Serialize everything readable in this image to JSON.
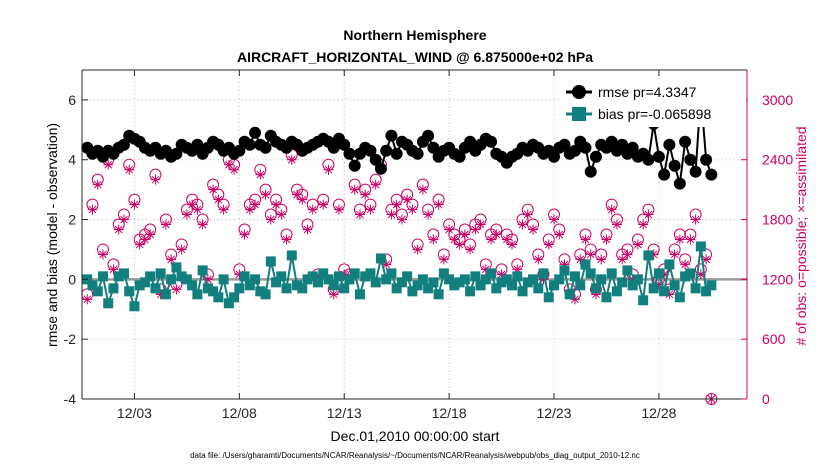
{
  "chart_data": {
    "type": "line",
    "title": "Northern Hemisphere",
    "subtitle": "AIRCRAFT_HORIZONTAL_WIND @ 6.875000e+02 hPa",
    "xlabel": "Dec.01,2010 00:00:00 start",
    "ylabel_left": "rmse and bias (model - observation)",
    "ylabel_right": "# of obs: o=possible; ×=assimilated",
    "footnote": "data file: /Users/gharamti/Documents/NCAR/Reanalysis/~/Documents/NCAR/Reanalysis/webpub/obs_diag_output_2010-12.nc",
    "xlim": [
      0.5,
      32.2
    ],
    "ylim_left": [
      -4,
      7
    ],
    "ylim_right": [
      0,
      3300
    ],
    "x_ticks": [
      {
        "value": 3,
        "label": "12/03"
      },
      {
        "value": 8,
        "label": "12/08"
      },
      {
        "value": 13,
        "label": "12/13"
      },
      {
        "value": 18,
        "label": "12/18"
      },
      {
        "value": 23,
        "label": "12/23"
      },
      {
        "value": 28,
        "label": "12/28"
      }
    ],
    "y_ticks_left": [
      {
        "value": -4,
        "label": "-4"
      },
      {
        "value": -2,
        "label": "-2"
      },
      {
        "value": 0,
        "label": "0"
      },
      {
        "value": 2,
        "label": "2"
      },
      {
        "value": 4,
        "label": "4"
      },
      {
        "value": 6,
        "label": "6"
      }
    ],
    "y_ticks_right": [
      {
        "value": 0,
        "label": "0"
      },
      {
        "value": 600,
        "label": "600"
      },
      {
        "value": 1200,
        "label": "1200"
      },
      {
        "value": 1800,
        "label": "1800"
      },
      {
        "value": 2400,
        "label": "2400"
      },
      {
        "value": 3000,
        "label": "3000"
      }
    ],
    "x_start": 0.75,
    "x_step": 0.25,
    "series": [
      {
        "name": "rmse pr=4.3347",
        "color": "#000000",
        "axis": "left",
        "values": [
          4.4,
          4.2,
          4.3,
          4.1,
          4.3,
          4.2,
          4.4,
          4.5,
          4.8,
          4.7,
          4.6,
          4.4,
          4.3,
          4.4,
          4.2,
          4.3,
          4.1,
          4.2,
          4.5,
          4.4,
          4.3,
          4.5,
          4.2,
          4.4,
          4.6,
          4.5,
          4.3,
          4.4,
          4.2,
          4.3,
          4.6,
          4.5,
          4.9,
          4.5,
          4.4,
          4.8,
          4.6,
          4.5,
          4.4,
          4.6,
          4.5,
          4.3,
          4.4,
          4.5,
          4.6,
          4.7,
          4.6,
          4.4,
          4.7,
          4.5,
          4.2,
          3.8,
          4.2,
          4.4,
          4.3,
          4.0,
          3.7,
          4.3,
          4.8,
          4.2,
          4.6,
          4.5,
          4.3,
          4.2,
          4.6,
          4.8,
          4.4,
          4.1,
          4.3,
          4.4,
          4.2,
          4.1,
          4.4,
          4.6,
          4.3,
          4.5,
          4.7,
          4.6,
          4.2,
          4.1,
          3.9,
          4.1,
          4.2,
          4.4,
          4.3,
          4.5,
          4.4,
          4.2,
          4.3,
          4.1,
          4.4,
          4.5,
          4.2,
          4.3,
          4.6,
          4.4,
          3.6,
          4.1,
          4.5,
          4.4,
          4.6,
          4.3,
          4.5,
          4.2,
          4.4,
          4.1,
          4.2,
          4.0,
          5.2,
          4.1,
          3.5,
          4.5,
          3.8,
          3.2,
          4.6,
          4.0,
          3.6,
          6.2,
          4.0,
          3.5
        ]
      },
      {
        "name": "bias pr=-0.065898",
        "color": "#127f7f",
        "axis": "left",
        "values": [
          0.0,
          -0.2,
          -0.4,
          0.1,
          -0.8,
          -0.3,
          0.1,
          0.2,
          -0.4,
          -0.9,
          -0.2,
          -0.1,
          0.1,
          -0.3,
          0.2,
          -0.5,
          0.0,
          0.4,
          0.1,
          0.0,
          -0.2,
          -0.5,
          0.3,
          -0.3,
          -0.4,
          -0.6,
          0.0,
          -0.8,
          -0.6,
          -0.3,
          0.1,
          -0.2,
          0.0,
          -0.4,
          -0.5,
          0.6,
          -0.1,
          0.1,
          -0.3,
          0.8,
          -0.2,
          -0.3,
          0.0,
          0.1,
          -0.1,
          0.2,
          0.0,
          -0.2,
          0.1,
          -0.3,
          0.0,
          0.2,
          -0.5,
          0.1,
          0.2,
          -0.1,
          0.7,
          0.0,
          0.2,
          -0.3,
          -0.1,
          0.1,
          -0.4,
          -0.2,
          0.0,
          -0.3,
          -0.1,
          -0.5,
          0.2,
          0.0,
          -0.2,
          -0.1,
          0.0,
          -0.4,
          0.1,
          -0.2,
          0.0,
          0.2,
          -0.3,
          -0.1,
          0.0,
          -0.2,
          0.1,
          -0.4,
          -0.1,
          0.0,
          -0.3,
          0.2,
          -0.6,
          -0.2,
          0.0,
          0.3,
          -0.5,
          0.1,
          -0.2,
          0.5,
          0.2,
          -0.3,
          0.0,
          -0.6,
          0.2,
          -0.4,
          -0.1,
          0.3,
          -0.2,
          0.0,
          -0.7,
          0.8,
          -0.3,
          0.2,
          -0.4,
          0.5,
          -0.2,
          -0.6,
          0.1,
          0.2,
          -0.3,
          1.1,
          -0.4,
          -0.2
        ]
      },
      {
        "name": "possible",
        "color": "#cc0066",
        "axis": "right",
        "marker": "o",
        "values": [
          1050,
          1950,
          2200,
          1500,
          2400,
          1350,
          1750,
          1850,
          2350,
          2000,
          1600,
          1650,
          1700,
          2250,
          1100,
          1800,
          1450,
          1150,
          1550,
          1900,
          2000,
          1950,
          1800,
          1250,
          2150,
          2050,
          1950,
          2400,
          2350,
          1300,
          1700,
          1950,
          2000,
          2300,
          2100,
          1850,
          2000,
          1900,
          1650,
          2450,
          2100,
          2050,
          1750,
          1950,
          1250,
          2000,
          2350,
          1100,
          1950,
          1300,
          1250,
          2150,
          1900,
          2100,
          1950,
          2200,
          2350,
          1400,
          1900,
          2000,
          1850,
          2050,
          1950,
          1550,
          2150,
          1900,
          1650,
          2000,
          1450,
          1750,
          1650,
          1600,
          1700,
          1550,
          1750,
          1800,
          1350,
          1650,
          1700,
          1300,
          1650,
          1600,
          1350,
          1800,
          1900,
          1750,
          1450,
          1250,
          1600,
          1850,
          1700,
          1400,
          1100,
          1050,
          1450,
          1650,
          1500,
          1100,
          1450,
          1650,
          1950,
          1800,
          1450,
          1500,
          1250,
          1600,
          1800,
          1900,
          1500,
          1200,
          1300,
          1100,
          1500,
          1650,
          1400,
          1650,
          1850,
          1300,
          1450,
          0
        ]
      },
      {
        "name": "assimilated",
        "color": "#cc0066",
        "axis": "right",
        "marker": "x",
        "values": [
          1000,
          1900,
          2150,
          1450,
          2350,
          1300,
          1700,
          1800,
          2300,
          1950,
          1550,
          1600,
          1650,
          2200,
          1050,
          1750,
          1400,
          1100,
          1500,
          1850,
          1950,
          1900,
          1750,
          1200,
          2100,
          2000,
          1900,
          2350,
          2300,
          1250,
          1650,
          1900,
          1950,
          2250,
          2050,
          1800,
          1950,
          1850,
          1600,
          2400,
          2050,
          2000,
          1700,
          1900,
          1200,
          1950,
          2300,
          1050,
          1900,
          1250,
          1200,
          2100,
          1850,
          2050,
          1900,
          2150,
          2300,
          1350,
          1850,
          1950,
          1800,
          2000,
          1900,
          1500,
          2100,
          1850,
          1600,
          1950,
          1400,
          1700,
          1600,
          1550,
          1650,
          1500,
          1700,
          1750,
          1300,
          1600,
          1650,
          1250,
          1600,
          1550,
          1300,
          1750,
          1850,
          1700,
          1400,
          1200,
          1550,
          1800,
          1650,
          1350,
          1050,
          1000,
          1400,
          1600,
          1450,
          1050,
          1400,
          1600,
          1900,
          1750,
          1400,
          1450,
          1200,
          1550,
          1750,
          1850,
          1450,
          1150,
          1250,
          1050,
          1450,
          1600,
          1350,
          1600,
          1800,
          1250,
          1400,
          0
        ]
      }
    ],
    "zero_line": 0,
    "legend_position": "top-right"
  }
}
